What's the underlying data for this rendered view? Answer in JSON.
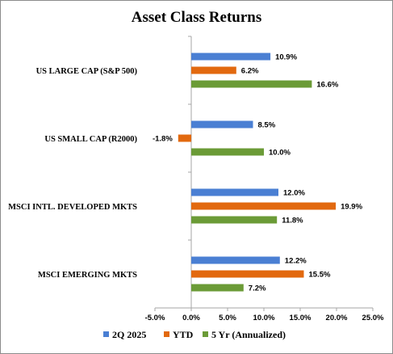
{
  "chart_data": {
    "type": "bar",
    "orientation": "horizontal",
    "title": "Asset Class Returns",
    "categories": [
      "US LARGE CAP (S&P 500)",
      "US SMALL CAP (R2000)",
      "MSCI INTL. DEVELOPED MKTS",
      "MSCI EMERGING MKTS"
    ],
    "series": [
      {
        "name": "2Q 2025",
        "color": "#4a7fd3",
        "values": [
          10.9,
          8.5,
          12.0,
          12.2
        ],
        "labels": [
          "10.9%",
          "8.5%",
          "12.0%",
          "12.2%"
        ]
      },
      {
        "name": "YTD",
        "color": "#e2690f",
        "values": [
          6.2,
          -1.8,
          19.9,
          15.5
        ],
        "labels": [
          "6.2%",
          "-1.8%",
          "19.9%",
          "15.5%"
        ]
      },
      {
        "name": "5 Yr (Annualized)",
        "color": "#6b9b37",
        "values": [
          16.6,
          10.0,
          11.8,
          7.2
        ],
        "labels": [
          "16.6%",
          "10.0%",
          "11.8%",
          "7.2%"
        ]
      }
    ],
    "xlim": [
      -5,
      25
    ],
    "xticks": [
      -5,
      0,
      5,
      10,
      15,
      20,
      25
    ],
    "xtick_labels": [
      "-5.0%",
      "0.0%",
      "5.0%",
      "10.0%",
      "15.0%",
      "20.0%",
      "25.0%"
    ],
    "grid": false,
    "legend_position": "bottom"
  }
}
